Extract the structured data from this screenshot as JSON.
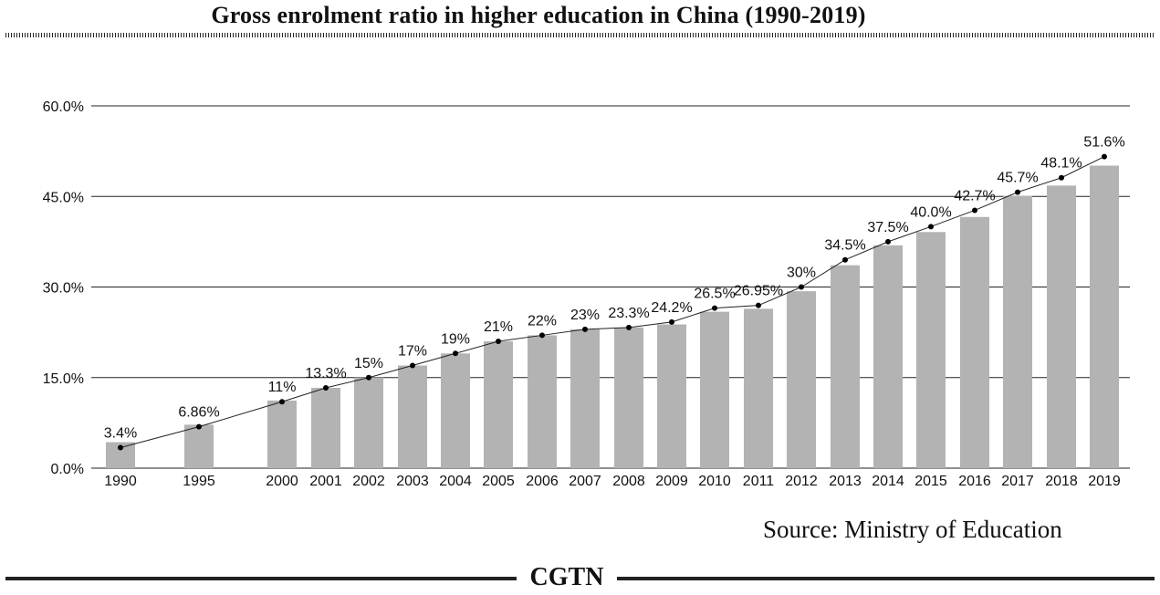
{
  "header": {
    "title": "Gross enrolment ratio in higher education in China (1990-2019)"
  },
  "footer": {
    "source": "Source: Ministry of Education",
    "brand": "CGTN"
  },
  "colors": {
    "bar": "#b3b3b3",
    "line": "#222222",
    "grid": "#222222"
  },
  "chart_data": {
    "type": "bar",
    "title": "Gross enrolment ratio in higher education in China (1990-2019)",
    "xlabel": "",
    "ylabel": "",
    "ylim": [
      0,
      60
    ],
    "yticks": [
      "0.0%",
      "15.0%",
      "30.0%",
      "45.0%",
      "60.0%"
    ],
    "ytick_values": [
      0,
      15,
      30,
      45,
      60
    ],
    "grid": true,
    "categories": [
      "1990",
      "1995",
      "2000",
      "2001",
      "2002",
      "2003",
      "2004",
      "2005",
      "2006",
      "2007",
      "2008",
      "2009",
      "2010",
      "2011",
      "2012",
      "2013",
      "2014",
      "2015",
      "2016",
      "2017",
      "2018",
      "2019"
    ],
    "series": [
      {
        "type": "bar",
        "values": [
          4.3,
          7.2,
          11.2,
          13.3,
          15.0,
          17.0,
          19.0,
          21.0,
          22.0,
          23.0,
          23.3,
          23.8,
          25.9,
          26.4,
          29.3,
          33.6,
          36.9,
          39.1,
          41.6,
          45.1,
          46.8,
          50.1
        ]
      },
      {
        "type": "line",
        "values": [
          3.4,
          6.86,
          11,
          13.3,
          15,
          17,
          19,
          21,
          22,
          23,
          23.3,
          24.2,
          26.5,
          26.95,
          30,
          34.5,
          37.5,
          40.0,
          42.7,
          45.7,
          48.1,
          51.6
        ],
        "labels": [
          "3.4%",
          "6.86%",
          "11%",
          "13.3%",
          "15%",
          "17%",
          "19%",
          "21%",
          "22%",
          "23%",
          "23.3%",
          "24.2%",
          "26.5%",
          "26.95%",
          "30%",
          "34.5%",
          "37.5%",
          "40.0%",
          "42.7%",
          "45.7%",
          "48.1%",
          "51.6%"
        ]
      }
    ]
  }
}
